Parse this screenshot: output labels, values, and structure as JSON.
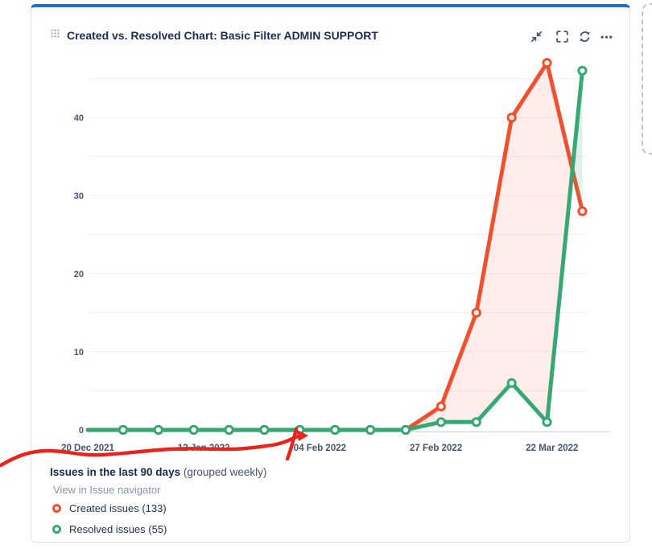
{
  "gadget": {
    "title": "Created vs. Resolved Chart: Basic Filter ADMIN SUPPORT",
    "drag_handle_icon": "dot-grid-drag-handle",
    "toolbar": {
      "minimize_icon": "collapse-diagonal-arrows",
      "expand_icon": "corner-brackets-fullscreen",
      "refresh_icon": "circular-arrows-refresh",
      "more_icon": "horizontal-ellipsis"
    },
    "accent_color": "#1a6edb"
  },
  "chart_data": {
    "type": "line",
    "title": "Created vs. Resolved Chart: Basic Filter ADMIN SUPPORT",
    "x_tick_labels": [
      "20 Dec 2021",
      "12 Jan 2022",
      "04 Feb 2022",
      "27 Feb 2022",
      "22 Mar 2022"
    ],
    "x_tick_day_offsets": [
      0,
      23,
      46,
      69,
      92
    ],
    "point_day_offsets": [
      0,
      7,
      14,
      21,
      28,
      35,
      42,
      49,
      56,
      63,
      70,
      77,
      84,
      91,
      98
    ],
    "y_ticks": [
      0,
      10,
      20,
      30,
      40
    ],
    "ylim": [
      0,
      49
    ],
    "grid_step": 5,
    "grid": true,
    "legend_position": "bottom-left",
    "series": [
      {
        "name": "Created issues",
        "total": 133,
        "color": "#f1502e",
        "fill": "rgba(241,80,46,0.10)",
        "values": [
          0,
          0,
          0,
          0,
          0,
          0,
          0,
          0,
          0,
          0,
          3,
          15,
          40,
          47,
          28
        ]
      },
      {
        "name": "Resolved issues",
        "total": 55,
        "color": "#35a874",
        "fill": "rgba(53,168,116,0.16)",
        "values": [
          0,
          0,
          0,
          0,
          0,
          0,
          0,
          0,
          0,
          0,
          1,
          1,
          6,
          1,
          46
        ]
      }
    ]
  },
  "footer": {
    "caption_bold": "Issues in the last 90 days",
    "caption_note": " (grouped weekly)",
    "link_label": "View in Issue navigator",
    "legend": [
      {
        "label": "Created issues (133)",
        "color": "#f1502e"
      },
      {
        "label": "Resolved issues (55)",
        "color": "#35a874"
      }
    ]
  },
  "annotation": {
    "type": "hand-drawn-arrow",
    "color": "#e8251d"
  },
  "colors": {
    "axis_label": "#44546f",
    "gridline": "#f0f0f1",
    "axis_line": "#cfcfd2",
    "title_text": "#1d2b4f",
    "icon": "#44546f"
  }
}
